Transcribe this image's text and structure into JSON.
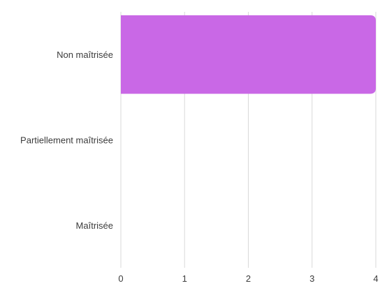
{
  "chart_data": {
    "type": "bar",
    "orientation": "horizontal",
    "categories": [
      "Non maîtrisée",
      "Partiellement maîtrisée",
      "Maîtrisée"
    ],
    "values": [
      4,
      0,
      0
    ],
    "xlim": [
      0,
      4
    ],
    "x_ticks": [
      "0",
      "1",
      "2",
      "3",
      "4"
    ],
    "grid": true,
    "bar_color": "#c968e6",
    "grid_color": "#d9d9d9"
  }
}
